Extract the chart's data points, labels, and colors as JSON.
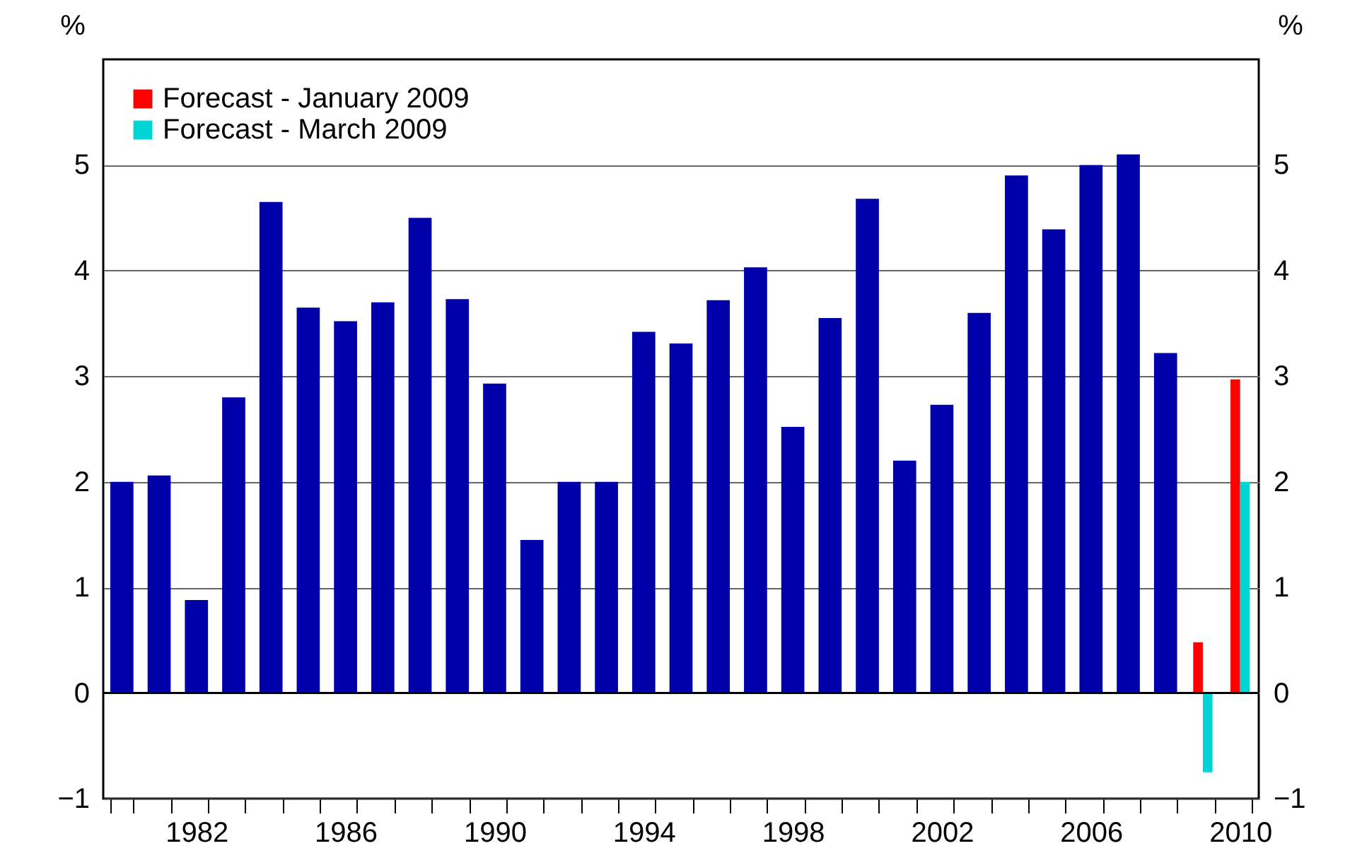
{
  "chart_data": {
    "type": "bar",
    "ylabel": "%",
    "y2label": "%",
    "categories": [
      null,
      null,
      "1982",
      null,
      null,
      null,
      "1986",
      null,
      null,
      null,
      "1990",
      null,
      null,
      null,
      "1994",
      null,
      null,
      null,
      "1998",
      null,
      null,
      null,
      "2002",
      null,
      null,
      null,
      "2006",
      null,
      null,
      null,
      "2010"
    ],
    "series": [
      {
        "color": "#0000a8",
        "values": [
          2.0,
          2.06,
          0.88,
          2.8,
          4.65,
          3.65,
          3.52,
          3.7,
          4.5,
          3.73,
          2.93,
          1.45,
          2.0,
          2.0,
          3.42,
          3.31,
          3.72,
          4.03,
          2.52,
          3.55,
          4.68,
          2.2,
          2.73,
          3.6,
          4.9,
          4.39,
          5.0,
          5.1,
          3.22,
          null,
          null
        ]
      },
      {
        "name": "Forecast - January 2009",
        "color": "#ff0000",
        "values": [
          null,
          null,
          null,
          null,
          null,
          null,
          null,
          null,
          null,
          null,
          null,
          null,
          null,
          null,
          null,
          null,
          null,
          null,
          null,
          null,
          null,
          null,
          null,
          null,
          null,
          null,
          null,
          null,
          null,
          0.48,
          2.97
        ]
      },
      {
        "name": "Forecast - March 2009",
        "color": "#00d4d4",
        "values": [
          null,
          null,
          null,
          null,
          null,
          null,
          null,
          null,
          null,
          null,
          null,
          null,
          null,
          null,
          null,
          null,
          null,
          null,
          null,
          null,
          null,
          null,
          null,
          null,
          null,
          null,
          null,
          null,
          null,
          -0.75,
          2.0
        ]
      }
    ],
    "ylim": [
      -1,
      6
    ],
    "yticks": [
      -1,
      0,
      1,
      2,
      3,
      4,
      5
    ],
    "y2lim": [
      -1,
      6
    ],
    "y2ticks": [
      -1,
      0,
      1,
      2,
      3,
      4,
      5
    ],
    "grid": "y",
    "legend": "top left"
  }
}
